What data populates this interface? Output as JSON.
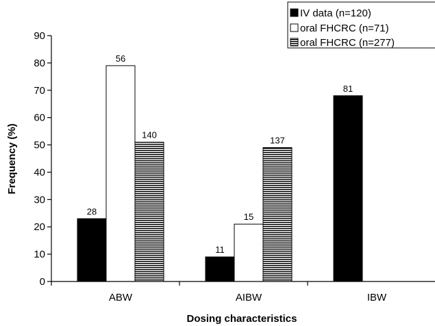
{
  "chart_data": {
    "type": "bar",
    "xlabel": "Dosing characteristics",
    "ylabel": "Frequency (%)",
    "ylim": [
      0,
      90
    ],
    "yticks": [
      "0",
      "10",
      "20",
      "30",
      "40",
      "50",
      "60",
      "70",
      "80",
      "90"
    ],
    "categories": [
      "ABW",
      "AIBW",
      "IBW"
    ],
    "legend_position": "top-right",
    "grid": false,
    "series": [
      {
        "name": "IV data (n=120)",
        "fill": "solid-black",
        "values": [
          23,
          9,
          68
        ],
        "labels": [
          "28",
          "11",
          "81"
        ]
      },
      {
        "name": "oral FHCRC (n=71)",
        "fill": "white",
        "values": [
          79,
          21,
          null
        ],
        "labels": [
          "56",
          "15",
          ""
        ]
      },
      {
        "name": "oral FHCRC (n=277)",
        "fill": "horizontal-stripes",
        "values": [
          51,
          49,
          null
        ],
        "labels": [
          "140",
          "137",
          ""
        ]
      }
    ]
  }
}
